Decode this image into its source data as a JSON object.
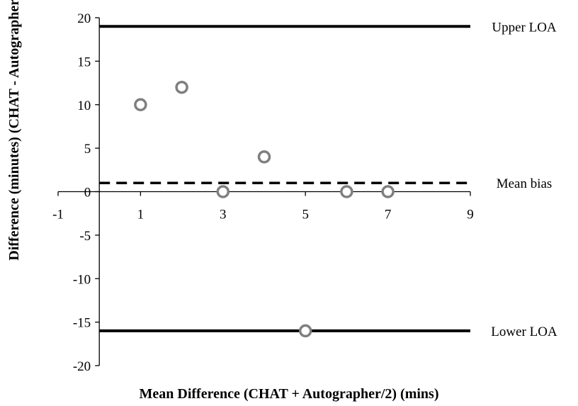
{
  "chart_data": {
    "type": "scatter",
    "title": "",
    "xlabel": "Mean Difference (CHAT + Autographer/2) (mins)",
    "ylabel": "Difference (minutes) (CHAT - Autographer)",
    "xlim": [
      -1,
      9
    ],
    "ylim": [
      -20,
      20
    ],
    "x_ticks": [
      -1,
      1,
      3,
      5,
      7,
      9
    ],
    "y_ticks": [
      20,
      15,
      10,
      5,
      0,
      -5,
      -10,
      -15,
      -20
    ],
    "grid": false,
    "legend": "none",
    "marker_color": "#7f7f7f",
    "points": [
      {
        "x": 1,
        "y": 10
      },
      {
        "x": 2,
        "y": 12
      },
      {
        "x": 3,
        "y": 0
      },
      {
        "x": 4,
        "y": 4
      },
      {
        "x": 5,
        "y": -16
      },
      {
        "x": 6,
        "y": 0
      },
      {
        "x": 7,
        "y": 0
      }
    ],
    "reference_lines": [
      {
        "label": "Upper LOA",
        "y": 19,
        "style": "solid"
      },
      {
        "label": "Mean bias",
        "y": 1,
        "style": "dashed"
      },
      {
        "label": "Lower LOA",
        "y": -16,
        "style": "solid"
      }
    ]
  }
}
